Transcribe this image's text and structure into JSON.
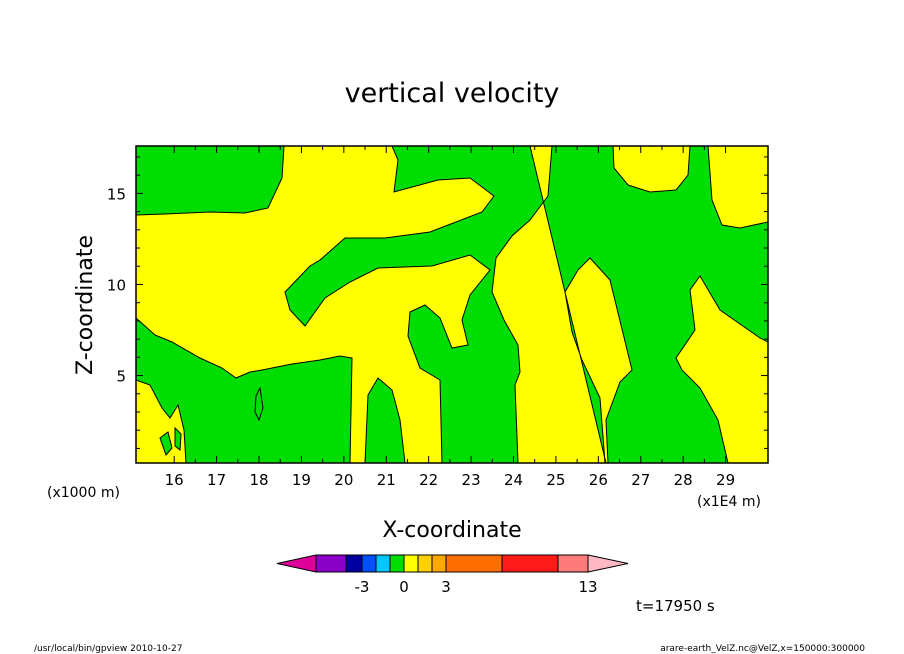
{
  "chart_data": {
    "type": "heatmap",
    "title": "vertical velocity",
    "xlabel": "X-coordinate",
    "ylabel": "Z-coordinate",
    "x_scale_note": "(x1E4 m)",
    "y_scale_note": "(x1000 m)",
    "xlim": [
      15.1,
      30.0
    ],
    "ylim": [
      0.2,
      17.6
    ],
    "x_ticks": [
      "16",
      "17",
      "18",
      "19",
      "20",
      "21",
      "22",
      "23",
      "24",
      "25",
      "26",
      "27",
      "28",
      "29"
    ],
    "y_ticks": [
      "5",
      "10",
      "15"
    ],
    "fill_regions": [
      {
        "name": "green",
        "color": "#00dd00"
      },
      {
        "name": "yellow",
        "color": "#ffff00"
      }
    ],
    "colorbar": {
      "colors": [
        "#e0009a",
        "#8a00c8",
        "#0000a0",
        "#0050ff",
        "#00c8ff",
        "#00dd00",
        "#ffff00",
        "#ffd000",
        "#ffa800",
        "#ff6e00",
        "#ff1a1a",
        "#ff7a7a",
        "#ffb8c4"
      ],
      "tick_labels": [
        "-3",
        "0",
        "3",
        "13"
      ]
    },
    "time_label": "t=17950 s"
  },
  "footer": {
    "left": "/usr/local/bin/gpview   2010-10-27",
    "right": "arare-earth_VelZ.nc@VelZ,x=150000:300000"
  }
}
